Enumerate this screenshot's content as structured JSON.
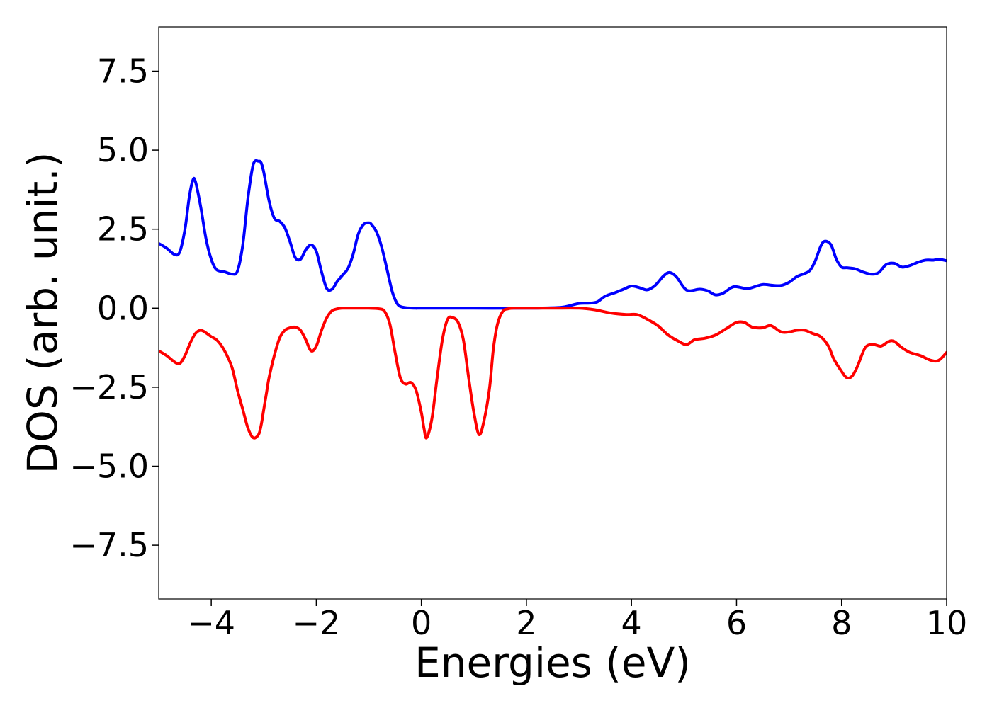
{
  "chart_data": {
    "type": "line",
    "title": "",
    "xlabel": "Energies (eV)",
    "ylabel": "DOS (arb. unit.)",
    "xlim": [
      -5,
      10
    ],
    "ylim": [
      -9.2,
      8.9
    ],
    "grid": false,
    "x_ticks": [
      -4,
      -2,
      0,
      2,
      4,
      6,
      8,
      10
    ],
    "x_tick_labels": [
      "−4",
      "−2",
      "0",
      "2",
      "4",
      "6",
      "8",
      "10"
    ],
    "y_ticks": [
      7.5,
      5.0,
      2.5,
      0.0,
      -2.5,
      -5.0,
      -7.5
    ],
    "y_tick_labels": [
      "7.5",
      "5.0",
      "2.5",
      "0.0",
      "−2.5",
      "−5.0",
      "−7.5"
    ],
    "series": [
      {
        "color": "#0000ff",
        "x": [
          -5.0,
          -4.85,
          -4.7,
          -4.6,
          -4.5,
          -4.42,
          -4.35,
          -4.3,
          -4.2,
          -4.1,
          -4.0,
          -3.9,
          -3.75,
          -3.6,
          -3.5,
          -3.4,
          -3.3,
          -3.2,
          -3.1,
          -3.05,
          -3.0,
          -2.9,
          -2.8,
          -2.7,
          -2.6,
          -2.5,
          -2.4,
          -2.3,
          -2.2,
          -2.1,
          -2.0,
          -1.9,
          -1.8,
          -1.7,
          -1.6,
          -1.5,
          -1.4,
          -1.3,
          -1.2,
          -1.1,
          -1.0,
          -0.95,
          -0.85,
          -0.75,
          -0.65,
          -0.55,
          -0.45,
          -0.35,
          -0.25,
          -0.1,
          0.0,
          1.0,
          2.0,
          2.6,
          2.8,
          3.0,
          3.2,
          3.35,
          3.5,
          3.7,
          3.85,
          4.0,
          4.15,
          4.3,
          4.45,
          4.6,
          4.72,
          4.85,
          5.0,
          5.1,
          5.3,
          5.45,
          5.6,
          5.75,
          5.9,
          6.0,
          6.2,
          6.35,
          6.5,
          6.7,
          6.85,
          7.0,
          7.15,
          7.3,
          7.4,
          7.5,
          7.6,
          7.68,
          7.8,
          7.9,
          8.0,
          8.1,
          8.25,
          8.4,
          8.55,
          8.7,
          8.85,
          9.0,
          9.15,
          9.3,
          9.45,
          9.6,
          9.75,
          9.85,
          10.0
        ],
        "y": [
          2.05,
          1.9,
          1.7,
          1.78,
          2.5,
          3.5,
          4.05,
          4.0,
          3.2,
          2.2,
          1.55,
          1.22,
          1.15,
          1.08,
          1.18,
          2.0,
          3.5,
          4.55,
          4.65,
          4.6,
          4.3,
          3.4,
          2.85,
          2.75,
          2.55,
          2.1,
          1.6,
          1.55,
          1.85,
          2.0,
          1.8,
          1.15,
          0.62,
          0.6,
          0.85,
          1.05,
          1.25,
          1.7,
          2.35,
          2.65,
          2.7,
          2.65,
          2.4,
          1.9,
          1.2,
          0.5,
          0.12,
          0.03,
          0.01,
          0.0,
          0.0,
          0.0,
          0.0,
          0.02,
          0.07,
          0.15,
          0.16,
          0.2,
          0.38,
          0.5,
          0.6,
          0.7,
          0.65,
          0.58,
          0.72,
          1.0,
          1.13,
          1.0,
          0.65,
          0.55,
          0.6,
          0.55,
          0.42,
          0.48,
          0.65,
          0.68,
          0.62,
          0.68,
          0.75,
          0.72,
          0.72,
          0.82,
          1.0,
          1.1,
          1.2,
          1.5,
          1.95,
          2.12,
          2.0,
          1.55,
          1.3,
          1.28,
          1.25,
          1.15,
          1.08,
          1.12,
          1.38,
          1.42,
          1.3,
          1.35,
          1.45,
          1.52,
          1.52,
          1.55,
          1.5
        ]
      },
      {
        "color": "#ff0000",
        "x": [
          -5.0,
          -4.85,
          -4.7,
          -4.6,
          -4.5,
          -4.4,
          -4.3,
          -4.2,
          -4.1,
          -4.0,
          -3.9,
          -3.8,
          -3.7,
          -3.6,
          -3.5,
          -3.4,
          -3.3,
          -3.2,
          -3.1,
          -3.05,
          -3.0,
          -2.95,
          -2.9,
          -2.8,
          -2.7,
          -2.6,
          -2.5,
          -2.4,
          -2.3,
          -2.2,
          -2.1,
          -2.0,
          -1.9,
          -1.8,
          -1.7,
          -1.6,
          -1.5,
          -1.4,
          -1.3,
          -1.2,
          -1.0,
          -0.8,
          -0.7,
          -0.6,
          -0.5,
          -0.4,
          -0.3,
          -0.2,
          -0.1,
          0.0,
          0.05,
          0.1,
          0.2,
          0.3,
          0.4,
          0.5,
          0.6,
          0.7,
          0.8,
          0.9,
          1.0,
          1.1,
          1.2,
          1.3,
          1.37,
          1.45,
          1.55,
          1.65,
          1.75,
          1.85,
          2.0,
          2.5,
          3.0,
          3.3,
          3.6,
          3.9,
          4.1,
          4.3,
          4.5,
          4.7,
          4.9,
          5.05,
          5.2,
          5.4,
          5.6,
          5.8,
          6.0,
          6.15,
          6.3,
          6.5,
          6.65,
          6.85,
          7.0,
          7.15,
          7.3,
          7.45,
          7.6,
          7.75,
          7.85,
          8.0,
          8.1,
          8.2,
          8.3,
          8.45,
          8.6,
          8.75,
          8.9,
          9.0,
          9.15,
          9.3,
          9.5,
          9.7,
          9.85,
          10.0
        ],
        "y": [
          -1.35,
          -1.5,
          -1.7,
          -1.75,
          -1.5,
          -1.1,
          -0.8,
          -0.7,
          -0.78,
          -0.9,
          -1.0,
          -1.2,
          -1.5,
          -1.9,
          -2.6,
          -3.2,
          -3.8,
          -4.1,
          -4.0,
          -3.7,
          -3.2,
          -2.7,
          -2.2,
          -1.5,
          -0.95,
          -0.7,
          -0.62,
          -0.6,
          -0.7,
          -1.0,
          -1.35,
          -1.2,
          -0.7,
          -0.3,
          -0.08,
          -0.02,
          0.0,
          0.0,
          0.0,
          0.0,
          0.0,
          -0.02,
          -0.1,
          -0.5,
          -1.4,
          -2.2,
          -2.4,
          -2.35,
          -2.6,
          -3.3,
          -3.8,
          -4.1,
          -3.5,
          -2.2,
          -1.0,
          -0.35,
          -0.3,
          -0.45,
          -1.0,
          -2.2,
          -3.3,
          -4.0,
          -3.5,
          -2.5,
          -1.3,
          -0.5,
          -0.1,
          -0.02,
          0.0,
          0.0,
          0.0,
          0.0,
          0.0,
          -0.05,
          -0.15,
          -0.2,
          -0.2,
          -0.35,
          -0.55,
          -0.85,
          -1.05,
          -1.15,
          -1.0,
          -0.95,
          -0.85,
          -0.65,
          -0.45,
          -0.45,
          -0.6,
          -0.62,
          -0.55,
          -0.75,
          -0.75,
          -0.7,
          -0.7,
          -0.8,
          -0.9,
          -1.2,
          -1.6,
          -2.0,
          -2.2,
          -2.15,
          -1.85,
          -1.25,
          -1.15,
          -1.2,
          -1.05,
          -1.05,
          -1.25,
          -1.4,
          -1.5,
          -1.65,
          -1.65,
          -1.4
        ]
      }
    ]
  }
}
